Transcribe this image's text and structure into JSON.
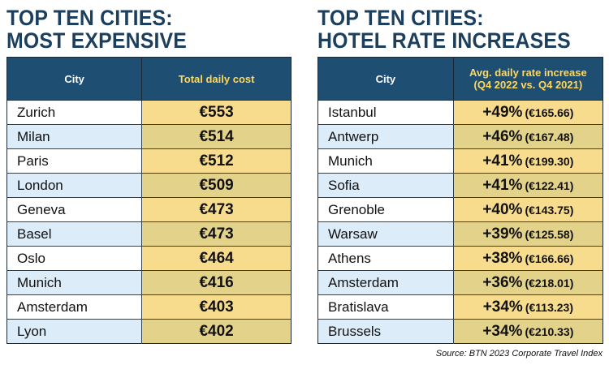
{
  "left": {
    "title_line1": "TOP TEN CITIES:",
    "title_line2": "MOST EXPENSIVE",
    "headers": {
      "city": "City",
      "value": "Total daily cost"
    },
    "rows": [
      {
        "city": "Zurich",
        "value": "€553"
      },
      {
        "city": "Milan",
        "value": "€514"
      },
      {
        "city": "Paris",
        "value": "€512"
      },
      {
        "city": "London",
        "value": "€509"
      },
      {
        "city": "Geneva",
        "value": "€473"
      },
      {
        "city": "Basel",
        "value": "€473"
      },
      {
        "city": "Oslo",
        "value": "€464"
      },
      {
        "city": "Munich",
        "value": "€416"
      },
      {
        "city": "Amsterdam",
        "value": "€403"
      },
      {
        "city": "Lyon",
        "value": "€402"
      }
    ]
  },
  "right": {
    "title_line1": "TOP TEN CITIES:",
    "title_line2": "HOTEL RATE INCREASES",
    "headers": {
      "city": "City",
      "value_line1": "Avg. daily rate increase",
      "value_line2": "(Q4 2022 vs. Q4 2021)"
    },
    "rows": [
      {
        "city": "Istanbul",
        "pct": "+49%",
        "amount": "(€165.66)"
      },
      {
        "city": "Antwerp",
        "pct": "+46%",
        "amount": "(€167.48)"
      },
      {
        "city": "Munich",
        "pct": "+41%",
        "amount": "(€199.30)"
      },
      {
        "city": "Sofia",
        "pct": "+41%",
        "amount": "(€122.41)"
      },
      {
        "city": "Grenoble",
        "pct": "+40%",
        "amount": "(€143.75)"
      },
      {
        "city": "Warsaw",
        "pct": "+39%",
        "amount": "(€125.58)"
      },
      {
        "city": "Athens",
        "pct": "+38%",
        "amount": "(€166.66)"
      },
      {
        "city": "Amsterdam",
        "pct": "+36%",
        "amount": "(€218.01)"
      },
      {
        "city": "Bratislava",
        "pct": "+34%",
        "amount": "(€113.23)"
      },
      {
        "city": "Brussels",
        "pct": "+34%",
        "amount": "(€210.33)"
      }
    ]
  },
  "source": "Source: BTN 2023 Corporate Travel Index",
  "colors": {
    "title": "#1d3f5e",
    "header_bg": "#1f4e73",
    "header_value_text": "#ffd85a",
    "city_alt_bg": "#dcecf8",
    "value_bg": "#f6dc8c"
  }
}
